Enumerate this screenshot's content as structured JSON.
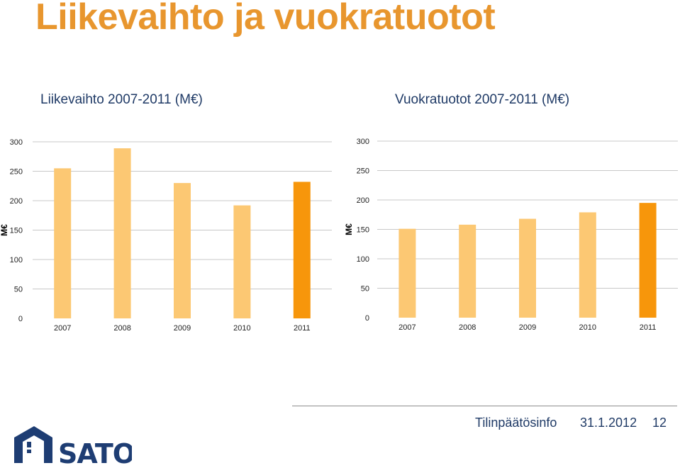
{
  "page": {
    "title": "Liikevaihto ja vuokratuotot"
  },
  "footer": {
    "label": "Tilinpäätösinfo",
    "date": "31.1.2012",
    "page_number": "12",
    "logo_text": "SATO"
  },
  "colors": {
    "title": "#E8962E",
    "text_blue": "#1f3a66",
    "bar_light": "#FCC873",
    "bar_highlight": "#F7960B",
    "logo_blue": "#1e3d73"
  },
  "chart_data": [
    {
      "type": "bar",
      "title": "Liikevaihto 2007-2011 (M€)",
      "ylabel": "M€",
      "xlabel": "",
      "categories": [
        "2007",
        "2008",
        "2009",
        "2010",
        "2011"
      ],
      "values": [
        255,
        289,
        230,
        192,
        232
      ],
      "highlight_index": 4,
      "ylim": [
        0,
        300
      ],
      "yticks": [
        "0",
        "50",
        "100",
        "150",
        "200",
        "250",
        "300"
      ],
      "grid": true
    },
    {
      "type": "bar",
      "title": "Vuokratuotot 2007-2011 (M€)",
      "ylabel": "M€",
      "xlabel": "",
      "categories": [
        "2007",
        "2008",
        "2009",
        "2010",
        "2011"
      ],
      "values": [
        151,
        158,
        168,
        179,
        195
      ],
      "highlight_index": 4,
      "ylim": [
        0,
        300
      ],
      "yticks": [
        "0",
        "50",
        "100",
        "150",
        "200",
        "250",
        "300"
      ],
      "grid": true
    }
  ]
}
